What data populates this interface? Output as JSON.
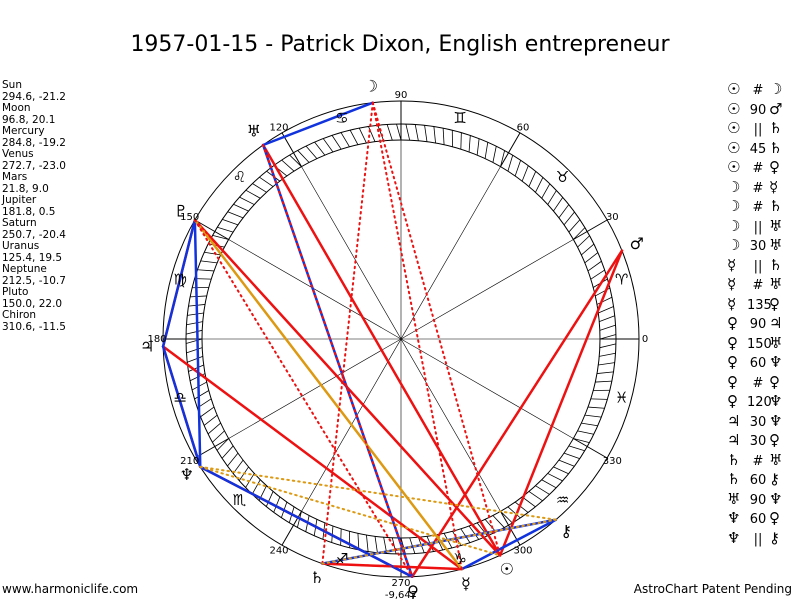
{
  "title": "1957-01-15 - Patrick Dixon, English entrepreneur",
  "footer": {
    "left": "www.harmoniclife.com",
    "right": "AstroChart Patent Pending"
  },
  "planets": [
    {
      "name": "Sun",
      "coords": "294.6, -21.2",
      "glyph": "☉",
      "lon": 294.6
    },
    {
      "name": "Moon",
      "coords": "96.8, 20.1",
      "glyph": "☽",
      "lon": 96.8
    },
    {
      "name": "Mercury",
      "coords": "284.8, -19.2",
      "glyph": "☿",
      "lon": 284.8
    },
    {
      "name": "Venus",
      "coords": "272.7, -23.0",
      "glyph": "♀",
      "lon": 272.7
    },
    {
      "name": "Mars",
      "coords": "21.8, 9.0",
      "glyph": "♂",
      "lon": 21.8
    },
    {
      "name": "Jupiter",
      "coords": "181.8, 0.5",
      "glyph": "♃",
      "lon": 181.8
    },
    {
      "name": "Saturn",
      "coords": "250.7, -20.4",
      "glyph": "♄",
      "lon": 250.7
    },
    {
      "name": "Uranus",
      "coords": "125.4, 19.5",
      "glyph": "♅",
      "lon": 125.4
    },
    {
      "name": "Neptune",
      "coords": "212.5, -10.7",
      "glyph": "♆",
      "lon": 212.5
    },
    {
      "name": "Pluto",
      "coords": "150.0, 22.0",
      "glyph": "♇",
      "lon": 150.0
    },
    {
      "name": "Chiron",
      "coords": "310.6, -11.5",
      "glyph": "⚷",
      "lon": 310.6
    }
  ],
  "degree_labels": [
    "0",
    "30",
    "60",
    "90",
    "120",
    "150",
    "180",
    "210",
    "240",
    "270",
    "300",
    "330"
  ],
  "extra_label": "-9,647",
  "signs": [
    "♈",
    "♉",
    "♊",
    "♋",
    "♌",
    "♍",
    "♎",
    "♏",
    "♐",
    "♑",
    "♒",
    "♓"
  ],
  "aspect_list": [
    {
      "a": "☉",
      "s": "#",
      "b": "☽"
    },
    {
      "a": "☉",
      "s": "90",
      "b": "♂"
    },
    {
      "a": "☉",
      "s": "||",
      "b": "♄"
    },
    {
      "a": "☉",
      "s": "45",
      "b": "♄"
    },
    {
      "a": "☉",
      "s": "#",
      "b": "♀"
    },
    {
      "a": "☽",
      "s": "#",
      "b": "☿"
    },
    {
      "a": "☽",
      "s": "#",
      "b": "♄"
    },
    {
      "a": "☽",
      "s": "||",
      "b": "♅"
    },
    {
      "a": "☽",
      "s": "30",
      "b": "♅"
    },
    {
      "a": "☿",
      "s": "||",
      "b": "♄"
    },
    {
      "a": "☿",
      "s": "#",
      "b": "♅"
    },
    {
      "a": "☿",
      "s": "135",
      "b": "♀"
    },
    {
      "a": "♀",
      "s": "90",
      "b": "♃"
    },
    {
      "a": "♀",
      "s": "150",
      "b": "♅"
    },
    {
      "a": "♀",
      "s": "60",
      "b": "♆"
    },
    {
      "a": "♀",
      "s": "#",
      "b": "♀"
    },
    {
      "a": "♀",
      "s": "120",
      "b": "♆"
    },
    {
      "a": "♃",
      "s": "30",
      "b": "♆"
    },
    {
      "a": "♃",
      "s": "30",
      "b": "♀"
    },
    {
      "a": "♄",
      "s": "#",
      "b": "♅"
    },
    {
      "a": "♄",
      "s": "60",
      "b": "⚷"
    },
    {
      "a": "♅",
      "s": "90",
      "b": "♆"
    },
    {
      "a": "♆",
      "s": "60",
      "b": "♀"
    },
    {
      "a": "♆",
      "s": "||",
      "b": "⚷"
    }
  ],
  "aspect_lines": [
    {
      "from": "Mars",
      "to": "Sun",
      "color": "#ee1111",
      "style": "solid"
    },
    {
      "from": "Mars",
      "to": "Venus",
      "color": "#ee1111",
      "style": "solid"
    },
    {
      "from": "Jupiter",
      "to": "Pluto",
      "color": "#ee1111",
      "style": "solid"
    },
    {
      "from": "Jupiter",
      "to": "Mercury",
      "color": "#ee1111",
      "style": "solid"
    },
    {
      "from": "Jupiter",
      "to": "Neptune",
      "color": "#ee1111",
      "style": "solid"
    },
    {
      "from": "Neptune",
      "to": "Venus",
      "color": "#ee1111",
      "style": "solid"
    },
    {
      "from": "Saturn",
      "to": "Mercury",
      "color": "#ee1111",
      "style": "solid"
    },
    {
      "from": "Uranus",
      "to": "Sun",
      "color": "#ee1111",
      "style": "solid"
    },
    {
      "from": "Pluto",
      "to": "Sun",
      "color": "#ee1111",
      "style": "solid"
    },
    {
      "from": "Moon",
      "to": "Uranus",
      "color": "#1133dd",
      "style": "solid"
    },
    {
      "from": "Uranus",
      "to": "Venus",
      "color": "#1133dd",
      "style": "solid"
    },
    {
      "from": "Pluto",
      "to": "Jupiter",
      "color": "#1133dd",
      "style": "solid"
    },
    {
      "from": "Jupiter",
      "to": "Neptune",
      "color": "#1133dd",
      "style": "solid"
    },
    {
      "from": "Pluto",
      "to": "Neptune",
      "color": "#1133dd",
      "style": "solid"
    },
    {
      "from": "Neptune",
      "to": "Venus",
      "color": "#1133dd",
      "style": "solid"
    },
    {
      "from": "Saturn",
      "to": "Chiron",
      "color": "#1133dd",
      "style": "solid"
    },
    {
      "from": "Mercury",
      "to": "Chiron",
      "color": "#1133dd",
      "style": "solid"
    },
    {
      "from": "Pluto",
      "to": "Mercury",
      "color": "#dd9911",
      "style": "solid"
    },
    {
      "from": "Moon",
      "to": "Sun",
      "color": "#ee1111",
      "style": "dotted"
    },
    {
      "from": "Moon",
      "to": "Mercury",
      "color": "#ee1111",
      "style": "dotted"
    },
    {
      "from": "Moon",
      "to": "Saturn",
      "color": "#ee1111",
      "style": "dotted"
    },
    {
      "from": "Pluto",
      "to": "Venus",
      "color": "#ee1111",
      "style": "dotted"
    },
    {
      "from": "Pluto",
      "to": "Sun",
      "color": "#ee1111",
      "style": "dotted"
    },
    {
      "from": "Uranus",
      "to": "Venus",
      "color": "#ee1111",
      "style": "dotted"
    },
    {
      "from": "Mercury",
      "to": "Saturn",
      "color": "#ee1111",
      "style": "dotted"
    },
    {
      "from": "Neptune",
      "to": "Chiron",
      "color": "#dd9911",
      "style": "dotted"
    },
    {
      "from": "Saturn",
      "to": "Chiron",
      "color": "#dd9911",
      "style": "dotted"
    },
    {
      "from": "Neptune",
      "to": "Sun",
      "color": "#dd9911",
      "style": "dotted"
    }
  ]
}
